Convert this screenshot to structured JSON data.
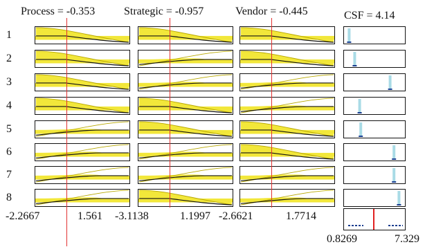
{
  "header": {
    "process": "Process = -0.353",
    "strategic": "Strategic = -0.957",
    "vendor": "Vendor = -0.445",
    "csf": "CSF = 4.14"
  },
  "rules": [
    {
      "label": "1",
      "process": "high",
      "strategic": "high",
      "vendor": "high",
      "csf_level": 0.03
    },
    {
      "label": "2",
      "process": "high",
      "strategic": "low",
      "vendor": "high",
      "csf_level": 0.13
    },
    {
      "label": "3",
      "process": "high",
      "strategic": "low",
      "vendor": "low",
      "csf_level": 0.77
    },
    {
      "label": "4",
      "process": "high",
      "strategic": "high",
      "vendor": "low",
      "csf_level": 0.22
    },
    {
      "label": "5",
      "process": "low",
      "strategic": "high",
      "vendor": "high",
      "csf_level": 0.24
    },
    {
      "label": "6",
      "process": "low",
      "strategic": "low",
      "vendor": "high",
      "csf_level": 0.84
    },
    {
      "label": "7",
      "process": "low",
      "strategic": "low",
      "vendor": "low",
      "csf_level": 0.84
    },
    {
      "label": "8",
      "process": "low",
      "strategic": "high",
      "vendor": "low",
      "csf_level": 0.93
    }
  ],
  "ranges": {
    "process_min": "-2.2667",
    "process_max": "1.561",
    "strategic_min": "-3.1138",
    "strategic_max": "1.1997",
    "vendor_min": "-2.6621",
    "vendor_max": "1.7714",
    "csf_min": "0.8269",
    "csf_max": "7.329"
  },
  "colors": {
    "fill": "#f2e73a",
    "curve": "#b8a800",
    "bar": "#a9dbe6",
    "bar_base": "#1a3d8f",
    "line": "#e23030"
  }
}
